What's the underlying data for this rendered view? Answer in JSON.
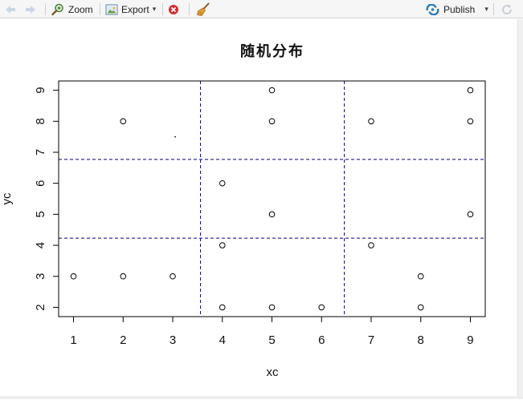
{
  "toolbar": {
    "zoom_label": "Zoom",
    "export_label": "Export",
    "publish_label": "Publish",
    "export_caret": "▾",
    "publish_caret": "▾"
  },
  "icons": {
    "back": "arrow-left-icon",
    "forward": "arrow-right-icon",
    "zoom": "magnifier-icon",
    "export": "image-export-icon",
    "remove": "remove-plot-icon",
    "clear": "broom-icon",
    "publish": "publish-icon",
    "refresh": "refresh-icon"
  },
  "colors": {
    "divider_lines": "#00008b",
    "remove_icon": "#d32f2f",
    "publish_icon": "#2c7bb6"
  },
  "chart_data": {
    "type": "scatter",
    "title": "随机分布",
    "xlabel": "xc",
    "ylabel": "yc",
    "xlim": [
      0.7,
      9.3
    ],
    "ylim": [
      1.7,
      9.3
    ],
    "xticks": [
      1,
      2,
      3,
      4,
      5,
      6,
      7,
      8,
      9
    ],
    "yticks": [
      2,
      3,
      4,
      5,
      6,
      7,
      8,
      9
    ],
    "grid": false,
    "points": [
      {
        "x": 1,
        "y": 3
      },
      {
        "x": 2,
        "y": 3
      },
      {
        "x": 3,
        "y": 3
      },
      {
        "x": 2,
        "y": 8
      },
      {
        "x": 4,
        "y": 6
      },
      {
        "x": 4,
        "y": 4
      },
      {
        "x": 4,
        "y": 2
      },
      {
        "x": 5,
        "y": 9
      },
      {
        "x": 5,
        "y": 8
      },
      {
        "x": 5,
        "y": 5
      },
      {
        "x": 5,
        "y": 2
      },
      {
        "x": 6,
        "y": 2
      },
      {
        "x": 7,
        "y": 8
      },
      {
        "x": 7,
        "y": 4
      },
      {
        "x": 8,
        "y": 3
      },
      {
        "x": 8,
        "y": 2
      },
      {
        "x": 9,
        "y": 9
      },
      {
        "x": 9,
        "y": 8
      },
      {
        "x": 9,
        "y": 5
      }
    ],
    "vlines": [
      3.56,
      6.46
    ],
    "hlines": [
      4.23,
      6.77
    ],
    "marker_dot": {
      "x": 3.05,
      "y": 7.5
    }
  }
}
